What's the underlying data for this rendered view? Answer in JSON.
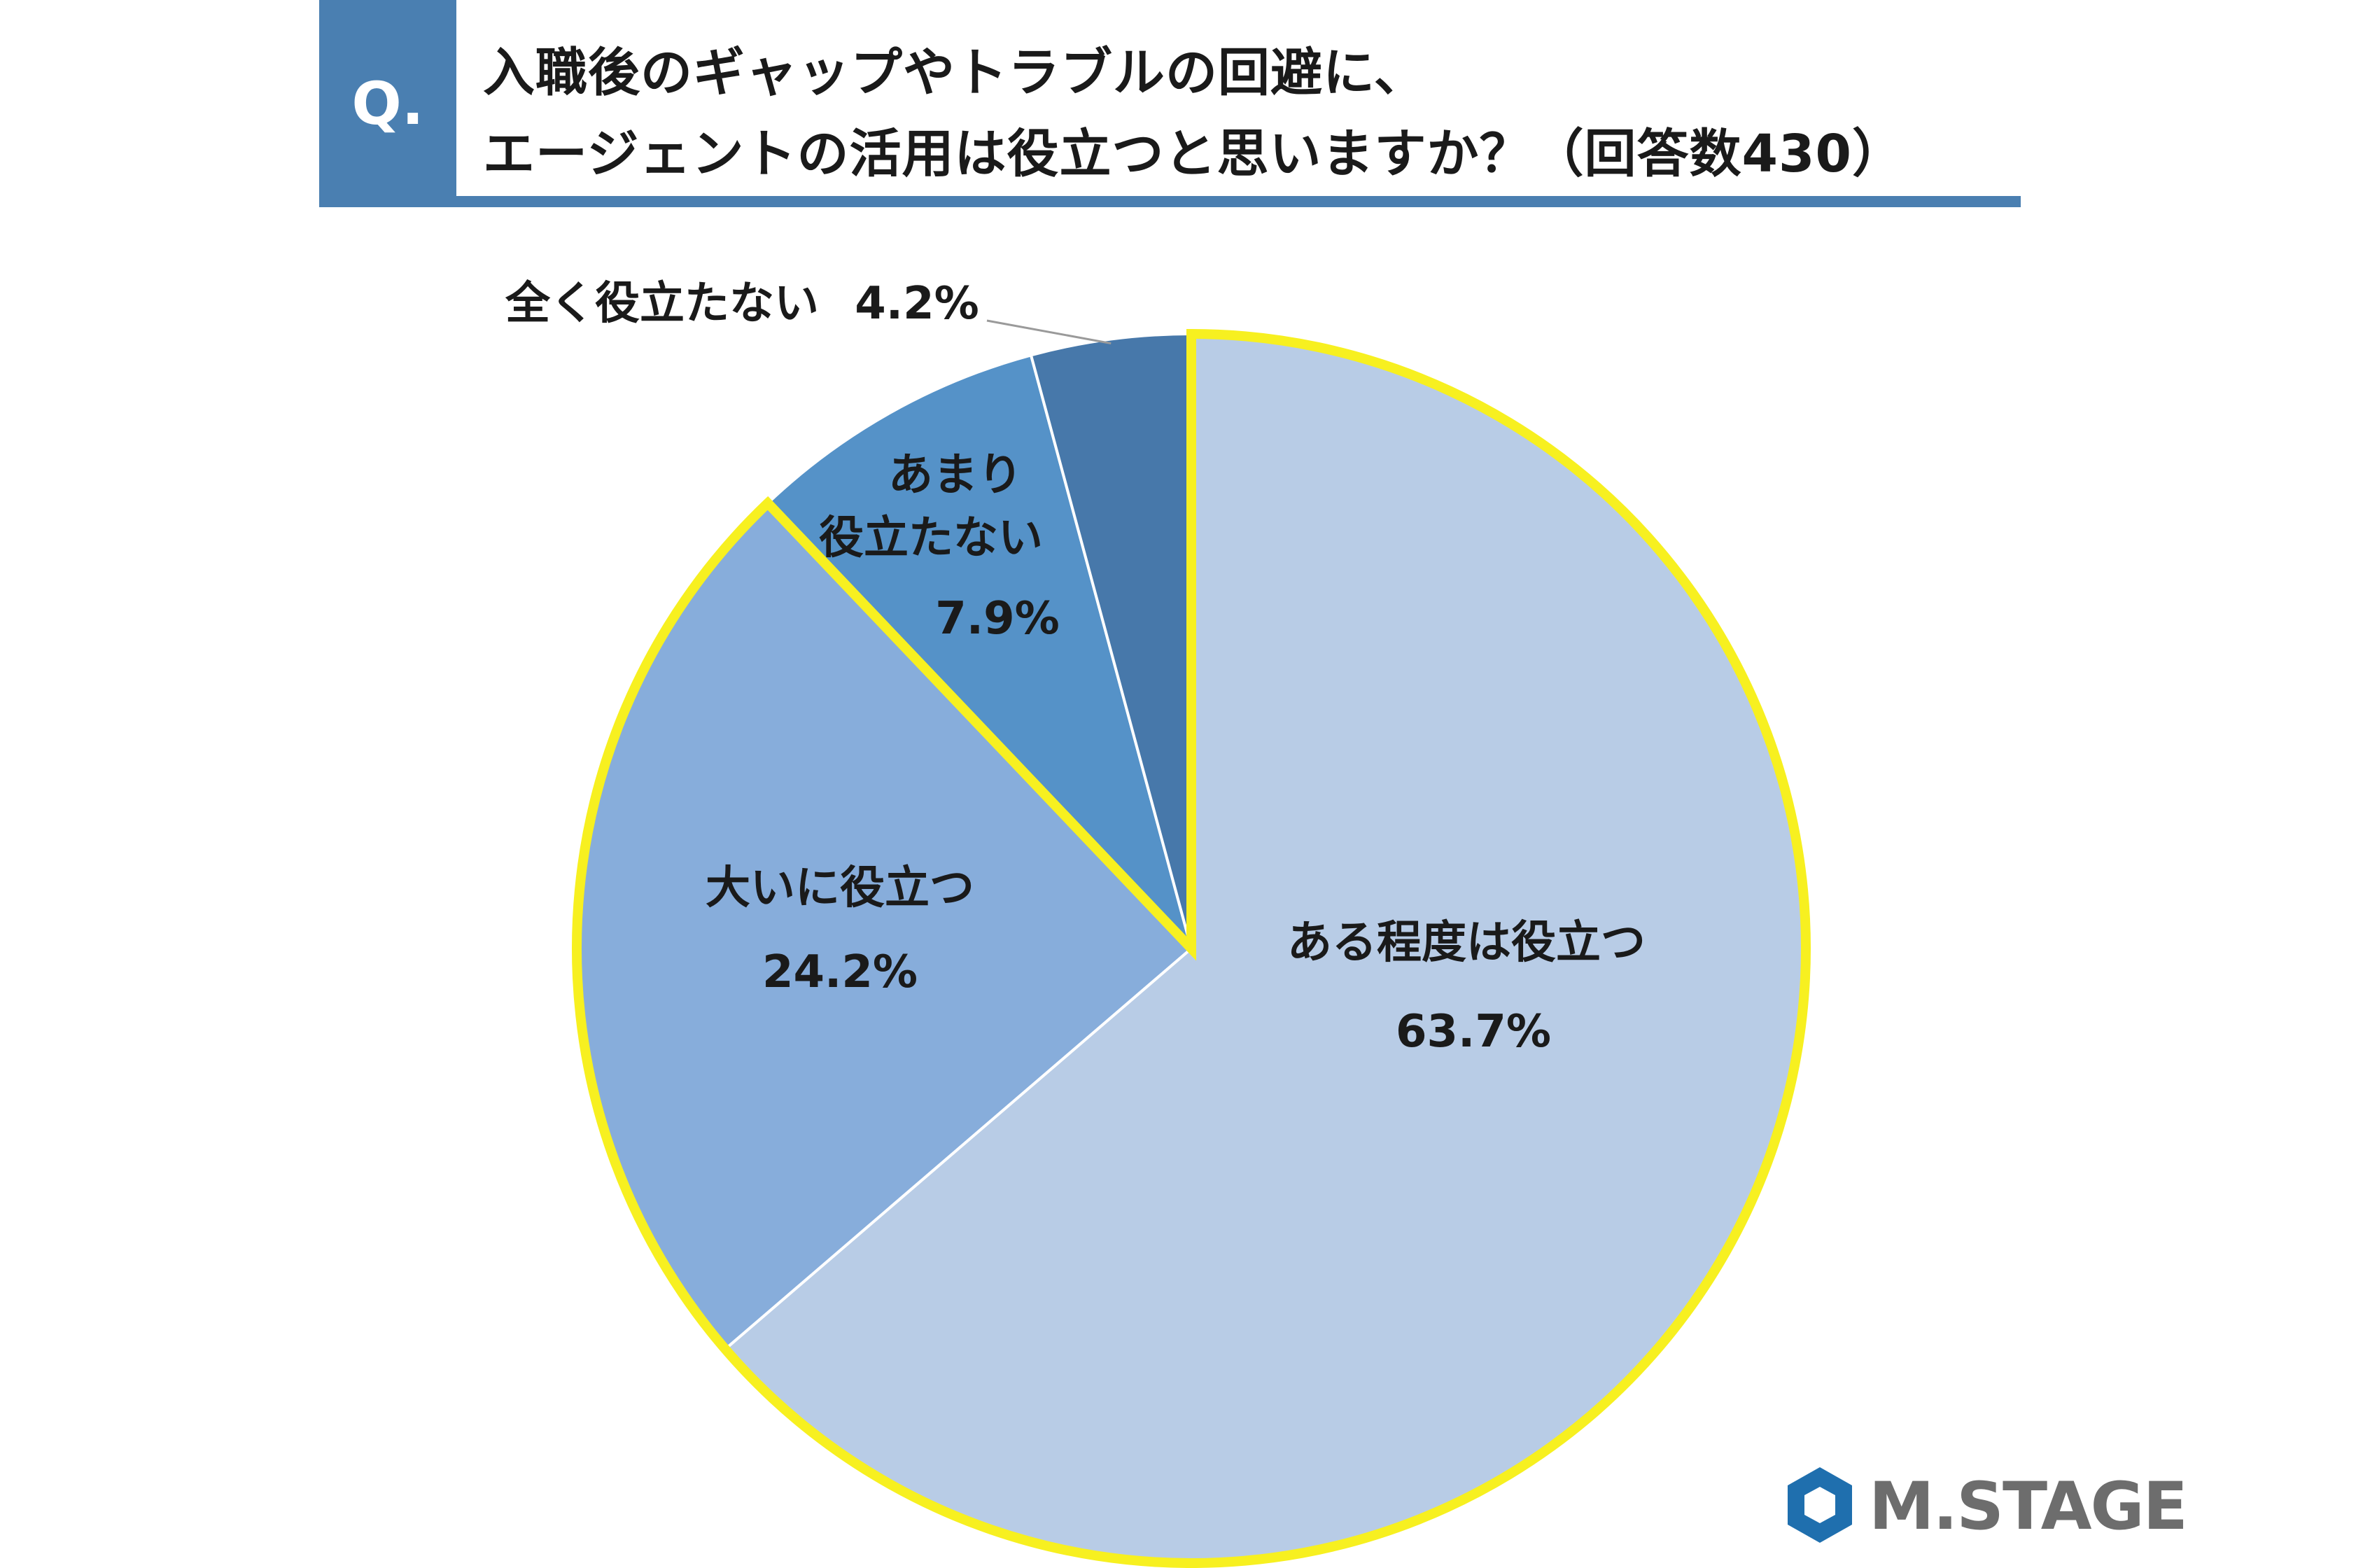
{
  "header": {
    "badge": "Q.",
    "title_line_1": "入職後のギャップやトラブルの回避に、",
    "title_line_2": "エージェントの活用は役立つと思いますか？（回答数430）"
  },
  "chart_data": {
    "type": "pie",
    "title": "入職後のギャップやトラブルの回避に、エージェントの活用は役立つと思いますか？（回答数430）",
    "start": "12 o'clock",
    "direction": "clockwise",
    "highlight": "yellow outline on ある程度は役立つ + 大いに役立つ",
    "slices": [
      {
        "label": "ある程度は役立つ",
        "value": 63.7,
        "value_label": "63.7%",
        "color": "#b8cce6",
        "highlight": true
      },
      {
        "label": "大いに役立つ",
        "value": 24.2,
        "value_label": "24.2%",
        "color": "#87addb",
        "highlight": true
      },
      {
        "label": "あまり役立たない",
        "label_lines": [
          "あまり",
          "役立たない"
        ],
        "value": 7.9,
        "value_label": "7.9%",
        "color": "#5592c8",
        "highlight": false
      },
      {
        "label": "全く役立たない",
        "value": 4.2,
        "value_label": "4.2%",
        "color": "#4778aa",
        "highlight": false
      }
    ],
    "highlight_color": "#f7f020"
  },
  "logo": {
    "text": "M.STAGE",
    "color": "#1f6fae"
  }
}
